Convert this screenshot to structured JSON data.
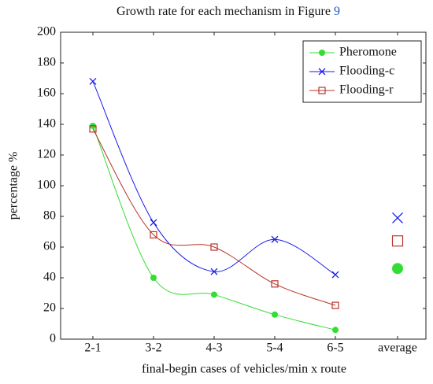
{
  "chart_data": {
    "type": "line",
    "title": "Growth rate for each mechanism in Figure",
    "title_ref": "9",
    "xlabel": "final-begin cases of vehicles/min x route",
    "ylabel": "percentage %",
    "categories": [
      "2-1",
      "3-2",
      "4-3",
      "5-4",
      "6-5",
      "average"
    ],
    "ylim": [
      0,
      200
    ],
    "yticks": [
      0,
      20,
      40,
      60,
      80,
      100,
      120,
      140,
      160,
      180,
      200
    ],
    "grid": false,
    "legend": "top-right",
    "series": [
      {
        "name": "Pheromone",
        "color": "#33dd33",
        "marker": "circle",
        "values": [
          139,
          40,
          29,
          16,
          6,
          null
        ],
        "average": 46
      },
      {
        "name": "Flooding-c",
        "color": "#1a1aee",
        "marker": "x",
        "values": [
          168,
          76,
          44,
          65,
          42,
          null
        ],
        "average": 79
      },
      {
        "name": "Flooding-r",
        "color": "#b8352a",
        "marker": "square",
        "values": [
          137,
          68,
          60,
          36,
          22,
          null
        ],
        "average": 64
      }
    ]
  }
}
